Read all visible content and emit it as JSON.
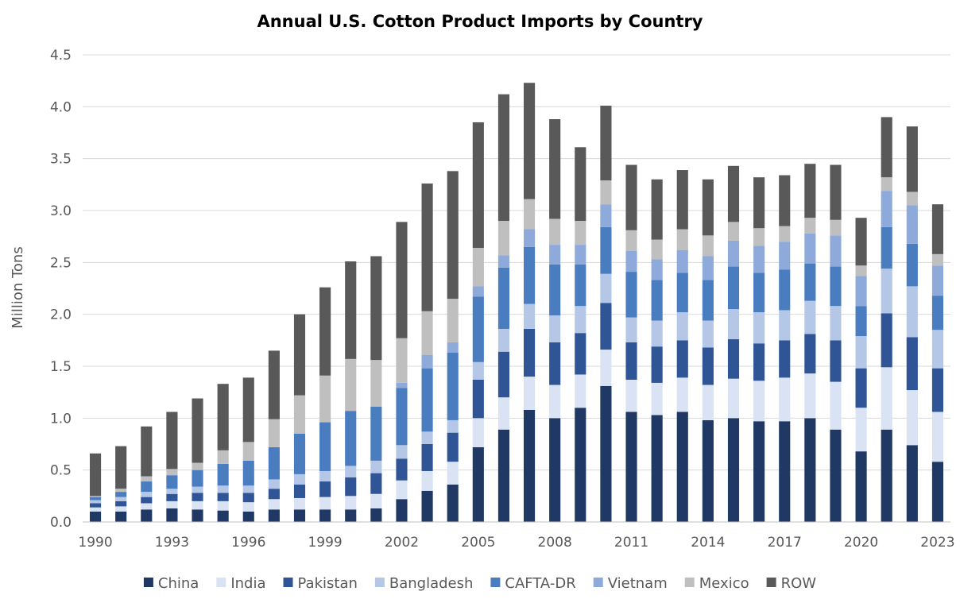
{
  "chart_data": {
    "type": "bar",
    "stacked": true,
    "title": "Annual U.S. Cotton Product Imports by Country",
    "xlabel": "",
    "ylabel": "Million Tons",
    "ylim": [
      0,
      4.5
    ],
    "yticks": [
      "0.0",
      "0.5",
      "1.0",
      "1.5",
      "2.0",
      "2.5",
      "3.0",
      "3.5",
      "4.0",
      "4.5"
    ],
    "categories": [
      "1990",
      "1991",
      "1992",
      "1993",
      "1994",
      "1995",
      "1996",
      "1997",
      "1998",
      "1999",
      "2000",
      "2001",
      "2002",
      "2003",
      "2004",
      "2005",
      "2006",
      "2007",
      "2008",
      "2009",
      "2010",
      "2011",
      "2012",
      "2013",
      "2014",
      "2015",
      "2016",
      "2017",
      "2018",
      "2019",
      "2020",
      "2021",
      "2022",
      "2023"
    ],
    "xtick_labels": [
      "1990",
      "1993",
      "1996",
      "1999",
      "2002",
      "2005",
      "2008",
      "2011",
      "2014",
      "2017",
      "2020",
      "2023"
    ],
    "grid": true,
    "legend_position": "bottom",
    "series": [
      {
        "name": "China",
        "color": "#203864",
        "values": [
          0.1,
          0.1,
          0.12,
          0.13,
          0.12,
          0.11,
          0.1,
          0.12,
          0.12,
          0.12,
          0.12,
          0.13,
          0.22,
          0.3,
          0.36,
          0.72,
          0.89,
          1.08,
          1.0,
          1.1,
          1.31,
          1.06,
          1.03,
          1.06,
          0.98,
          1.0,
          0.97,
          0.97,
          1.0,
          0.89,
          0.68,
          0.89,
          0.74,
          0.58
        ]
      },
      {
        "name": "India",
        "color": "#dae3f3",
        "values": [
          0.04,
          0.05,
          0.06,
          0.07,
          0.08,
          0.09,
          0.09,
          0.1,
          0.11,
          0.12,
          0.13,
          0.14,
          0.18,
          0.19,
          0.22,
          0.28,
          0.31,
          0.32,
          0.32,
          0.32,
          0.35,
          0.31,
          0.31,
          0.33,
          0.34,
          0.38,
          0.39,
          0.42,
          0.43,
          0.46,
          0.42,
          0.6,
          0.53,
          0.48
        ]
      },
      {
        "name": "Pakistan",
        "color": "#2f5597",
        "values": [
          0.04,
          0.05,
          0.06,
          0.07,
          0.08,
          0.08,
          0.09,
          0.1,
          0.13,
          0.15,
          0.18,
          0.2,
          0.21,
          0.26,
          0.28,
          0.37,
          0.44,
          0.46,
          0.41,
          0.4,
          0.45,
          0.36,
          0.35,
          0.36,
          0.36,
          0.38,
          0.36,
          0.36,
          0.38,
          0.4,
          0.38,
          0.52,
          0.51,
          0.42
        ]
      },
      {
        "name": "Bangladesh",
        "color": "#b4c7e7",
        "values": [
          0.03,
          0.04,
          0.05,
          0.05,
          0.06,
          0.07,
          0.07,
          0.09,
          0.1,
          0.1,
          0.11,
          0.12,
          0.13,
          0.12,
          0.12,
          0.17,
          0.22,
          0.24,
          0.26,
          0.26,
          0.28,
          0.24,
          0.25,
          0.27,
          0.26,
          0.29,
          0.3,
          0.29,
          0.32,
          0.33,
          0.31,
          0.43,
          0.49,
          0.37
        ]
      },
      {
        "name": "CAFTA-DR",
        "color": "#4a7cc0",
        "values": [
          0.03,
          0.05,
          0.1,
          0.13,
          0.16,
          0.21,
          0.24,
          0.31,
          0.39,
          0.47,
          0.53,
          0.52,
          0.55,
          0.61,
          0.65,
          0.63,
          0.59,
          0.55,
          0.49,
          0.4,
          0.45,
          0.44,
          0.39,
          0.38,
          0.39,
          0.41,
          0.38,
          0.39,
          0.36,
          0.38,
          0.29,
          0.4,
          0.41,
          0.33
        ]
      },
      {
        "name": "Vietnam",
        "color": "#8eaadb",
        "values": [
          0,
          0,
          0,
          0,
          0,
          0,
          0,
          0,
          0,
          0,
          0,
          0,
          0.05,
          0.13,
          0.1,
          0.1,
          0.12,
          0.17,
          0.19,
          0.19,
          0.22,
          0.2,
          0.2,
          0.22,
          0.23,
          0.25,
          0.26,
          0.27,
          0.29,
          0.3,
          0.29,
          0.35,
          0.37,
          0.29
        ]
      },
      {
        "name": "Mexico",
        "color": "#bfbfbf",
        "values": [
          0.01,
          0.03,
          0.05,
          0.06,
          0.07,
          0.13,
          0.18,
          0.27,
          0.37,
          0.45,
          0.5,
          0.45,
          0.43,
          0.42,
          0.42,
          0.37,
          0.33,
          0.29,
          0.25,
          0.23,
          0.23,
          0.2,
          0.19,
          0.2,
          0.2,
          0.18,
          0.17,
          0.15,
          0.15,
          0.15,
          0.1,
          0.13,
          0.13,
          0.11
        ]
      },
      {
        "name": "ROW",
        "color": "#595959",
        "values": [
          0.41,
          0.41,
          0.48,
          0.55,
          0.62,
          0.64,
          0.62,
          0.66,
          0.78,
          0.85,
          0.94,
          1.0,
          1.12,
          1.23,
          1.23,
          1.21,
          1.22,
          1.12,
          0.96,
          0.71,
          0.72,
          0.63,
          0.58,
          0.57,
          0.54,
          0.54,
          0.49,
          0.49,
          0.52,
          0.53,
          0.46,
          0.58,
          0.63,
          0.48
        ]
      }
    ]
  }
}
